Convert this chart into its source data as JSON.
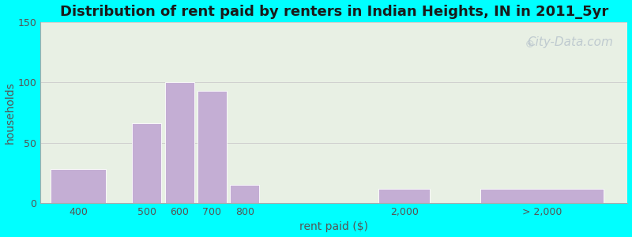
{
  "title": "Distribution of rent paid by renters in Indian Heights, IN in 2011_5yr",
  "xlabel": "rent paid ($)",
  "ylabel": "households",
  "background_color": "#00FFFF",
  "plot_bg_color": "#e8f0e4",
  "bar_color": "#c4aed4",
  "bar_edge_color": "#ffffff",
  "ylim": [
    0,
    150
  ],
  "yticks": [
    0,
    50,
    100,
    150
  ],
  "title_fontsize": 13,
  "axis_label_fontsize": 10,
  "tick_fontsize": 9,
  "watermark_text": "City-Data.com",
  "watermark_color": "#b8c4cc",
  "watermark_fontsize": 11,
  "bar_x": [
    1.0,
    3.0,
    3.95,
    4.9,
    5.85,
    10.5,
    14.5
  ],
  "bar_h": [
    28,
    66,
    100,
    93,
    15,
    12,
    12
  ],
  "bar_w": [
    1.6,
    0.85,
    0.85,
    0.85,
    0.85,
    1.5,
    3.6
  ],
  "tick_x": [
    1.0,
    3.0,
    3.95,
    4.9,
    5.85,
    10.5,
    14.5
  ],
  "tick_labels": [
    "400",
    "500",
    "600",
    "700",
    "800",
    "2,000",
    "> 2,000"
  ],
  "xlim": [
    -0.1,
    17.0
  ]
}
